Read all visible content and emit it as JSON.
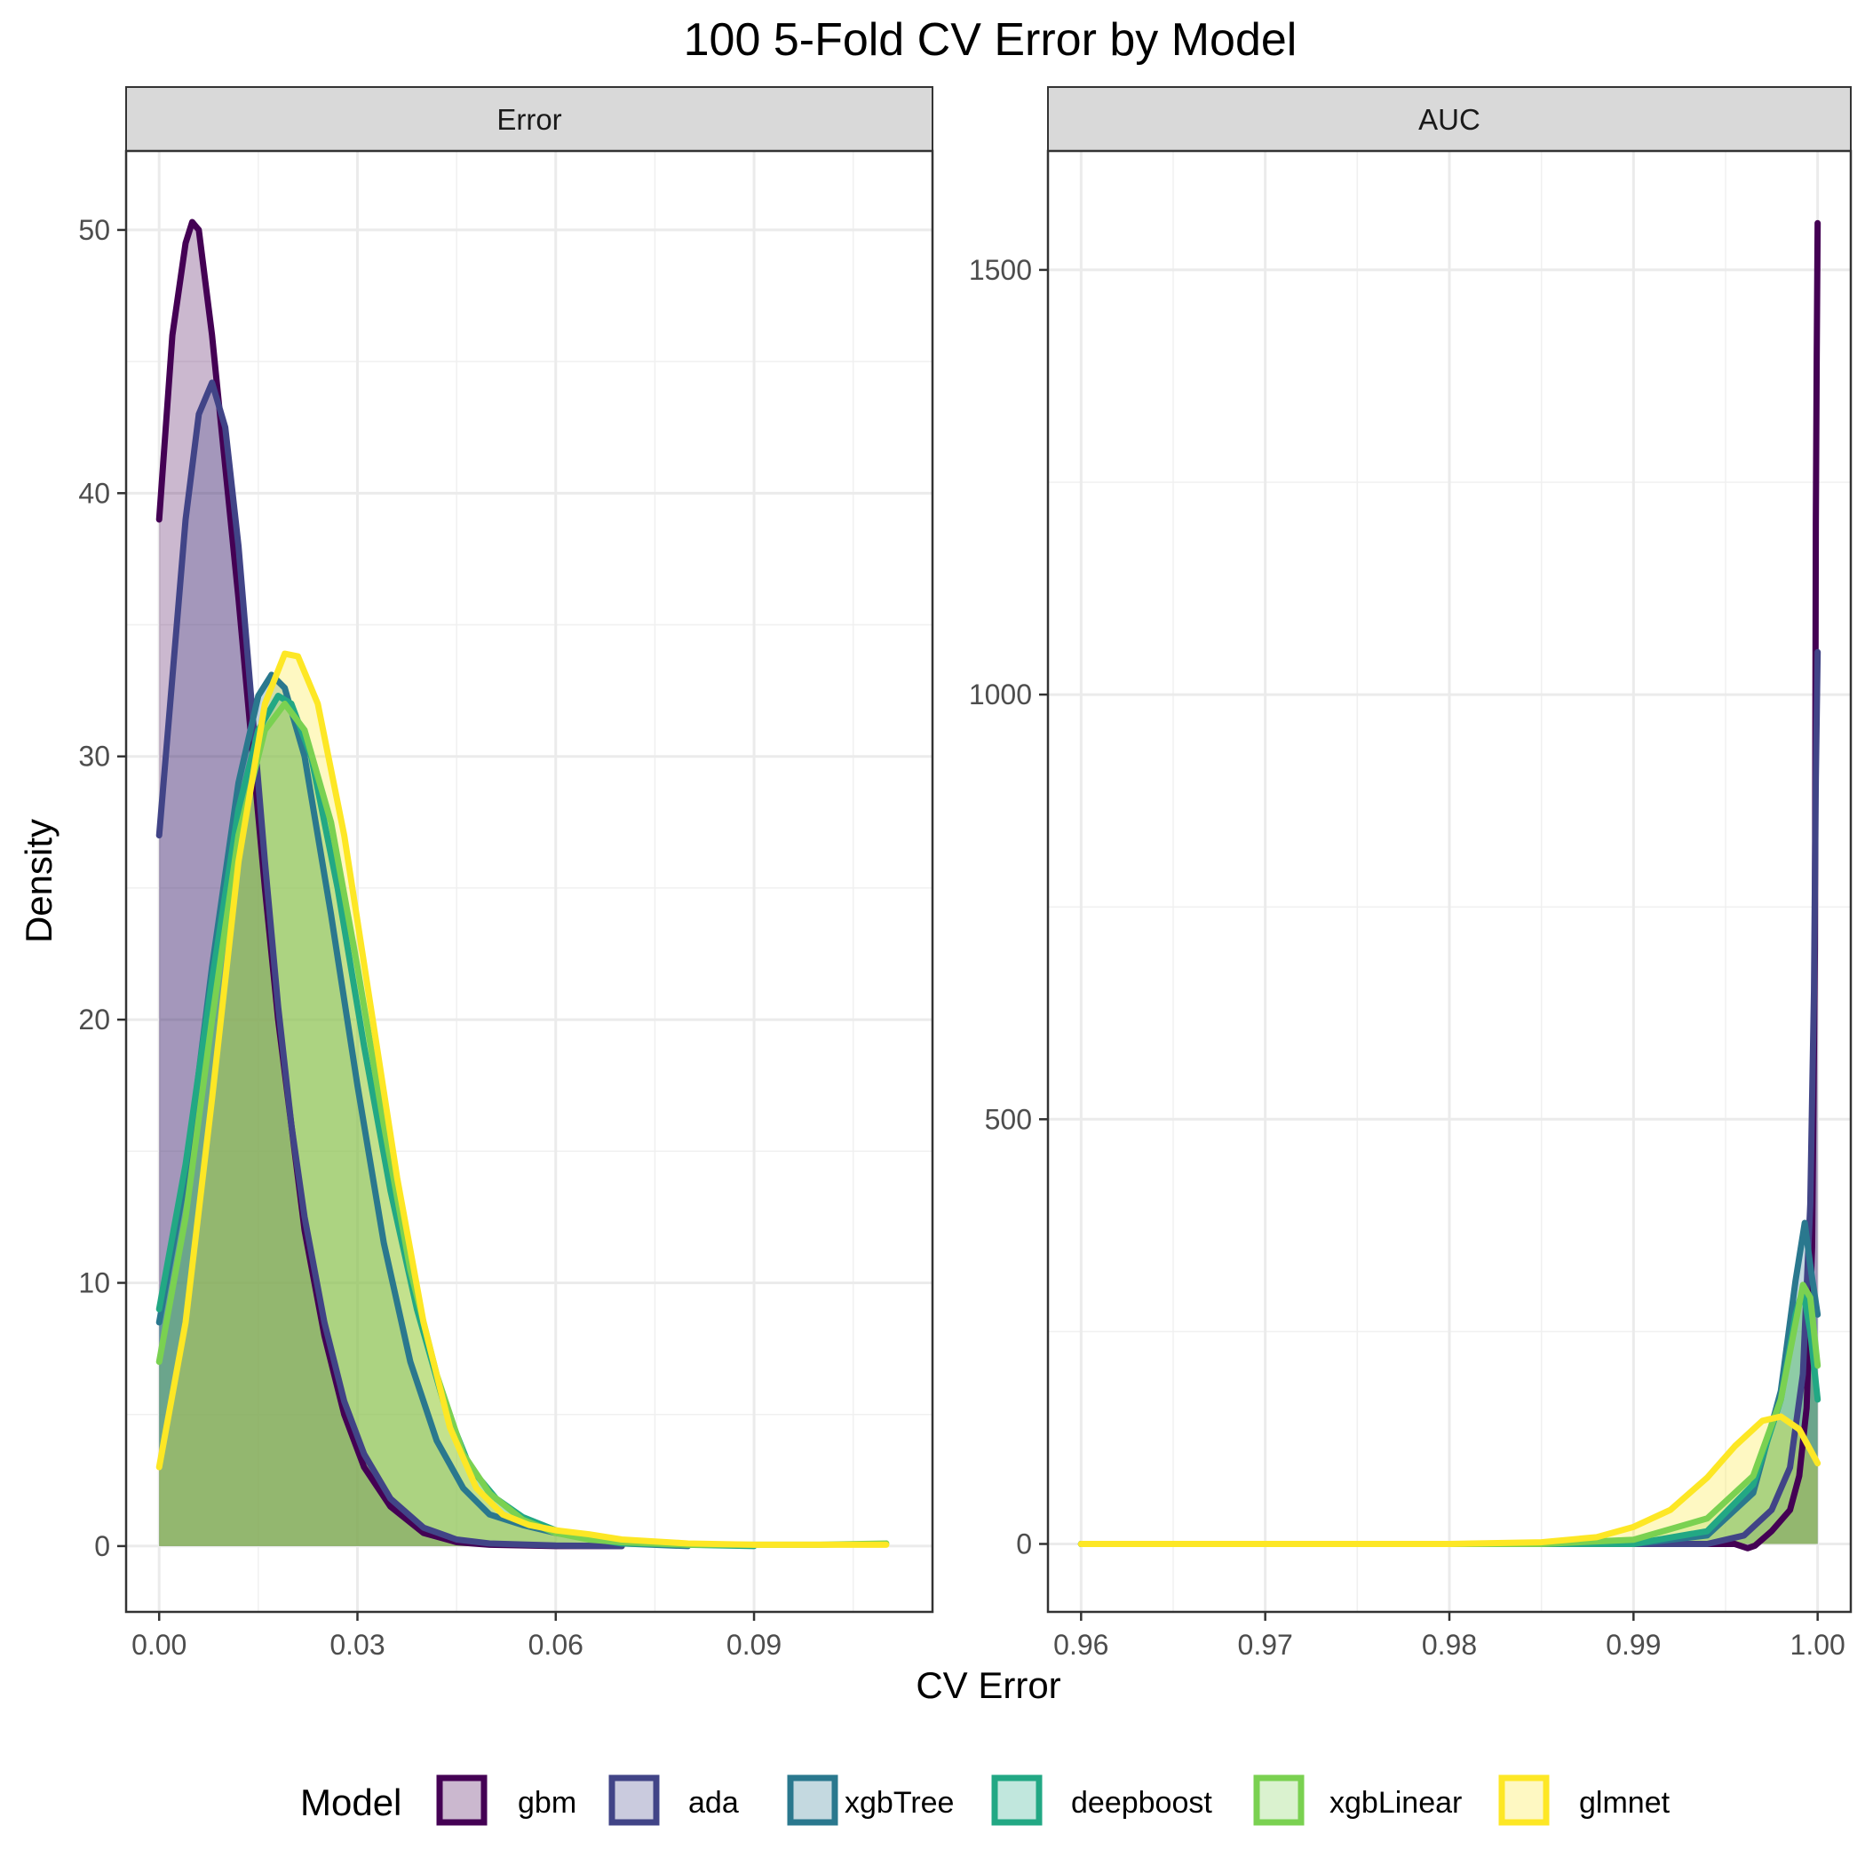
{
  "title": "100 5-Fold CV Error by Model",
  "xlabel": "CV Error",
  "ylabel": "Density",
  "legend": {
    "title": "Model",
    "position": "bottom"
  },
  "chart_data": {
    "type": "area",
    "grid": true,
    "series_names": [
      "gbm",
      "ada",
      "xgbTree",
      "deepboost",
      "xgbLinear",
      "glmnet"
    ],
    "colors": {
      "gbm": "#440154",
      "ada": "#414487",
      "xgbTree": "#2A788E",
      "deepboost": "#22A884",
      "xgbLinear": "#7AD151",
      "glmnet": "#FDE725"
    },
    "panels": [
      {
        "strip": "Error",
        "xlim": [
          -0.005,
          0.117
        ],
        "ylim": [
          -2.5,
          53
        ],
        "x_ticks": [
          0,
          0.03,
          0.06,
          0.09
        ],
        "x_tick_labels": [
          "0.00",
          "0.03",
          "0.06",
          "0.09"
        ],
        "y_ticks": [
          0,
          10,
          20,
          30,
          40,
          50
        ],
        "y_tick_labels": [
          "0",
          "10",
          "20",
          "30",
          "40",
          "50"
        ],
        "series": [
          {
            "name": "gbm",
            "x": [
              0,
              0.002,
              0.004,
              0.005,
              0.006,
              0.008,
              0.01,
              0.012,
              0.014,
              0.016,
              0.018,
              0.02,
              0.022,
              0.025,
              0.028,
              0.031,
              0.035,
              0.04,
              0.045,
              0.05,
              0.06,
              0.07
            ],
            "y": [
              39,
              46,
              49.5,
              50.3,
              50,
              46,
              41,
              36,
              30.5,
              25,
              20,
              16,
              12,
              8,
              5,
              3,
              1.5,
              0.5,
              0.15,
              0.05,
              0,
              0
            ]
          },
          {
            "name": "ada",
            "x": [
              0,
              0.002,
              0.004,
              0.006,
              0.008,
              0.01,
              0.012,
              0.014,
              0.016,
              0.018,
              0.02,
              0.022,
              0.025,
              0.028,
              0.031,
              0.035,
              0.04,
              0.045,
              0.05,
              0.06,
              0.07
            ],
            "y": [
              27,
              33,
              39,
              43,
              44.2,
              42.5,
              38,
              32,
              26,
              20.5,
              16,
              12.5,
              8.5,
              5.5,
              3.5,
              1.8,
              0.7,
              0.25,
              0.1,
              0.02,
              0
            ]
          },
          {
            "name": "xgbTree",
            "x": [
              0,
              0.004,
              0.008,
              0.012,
              0.015,
              0.017,
              0.019,
              0.022,
              0.026,
              0.03,
              0.034,
              0.038,
              0.042,
              0.046,
              0.05,
              0.055,
              0.06,
              0.065,
              0.07,
              0.08
            ],
            "y": [
              8.5,
              14,
              22,
              29,
              32.3,
              33.1,
              32.6,
              30,
              24,
              17.5,
              11.5,
              7,
              4,
              2.2,
              1.2,
              0.8,
              0.5,
              0.3,
              0.1,
              0
            ]
          },
          {
            "name": "deepboost",
            "x": [
              0,
              0.004,
              0.008,
              0.012,
              0.015,
              0.018,
              0.02,
              0.023,
              0.027,
              0.031,
              0.035,
              0.039,
              0.043,
              0.047,
              0.051,
              0.055,
              0.06,
              0.065,
              0.07,
              0.08,
              0.09
            ],
            "y": [
              9,
              14.5,
              21.5,
              28,
              31,
              32.3,
              32,
              30,
              25,
              19,
              13.5,
              9,
              5.5,
              3,
              1.8,
              1.1,
              0.6,
              0.3,
              0.1,
              0.05,
              0
            ]
          },
          {
            "name": "xgbLinear",
            "x": [
              0,
              0.004,
              0.008,
              0.012,
              0.016,
              0.019,
              0.022,
              0.026,
              0.03,
              0.034,
              0.038,
              0.042,
              0.046,
              0.05,
              0.055,
              0.06,
              0.065,
              0.07,
              0.08,
              0.09,
              0.1,
              0.11
            ],
            "y": [
              7,
              12.5,
              20,
              27,
              31,
              32,
              31,
              27.5,
              22,
              16,
              10.5,
              6.5,
              3.5,
              2,
              1,
              0.5,
              0.25,
              0.15,
              0.05,
              0.05,
              0.05,
              0.1
            ]
          },
          {
            "name": "glmnet",
            "x": [
              0,
              0.004,
              0.008,
              0.012,
              0.016,
              0.019,
              0.021,
              0.024,
              0.028,
              0.032,
              0.036,
              0.04,
              0.044,
              0.048,
              0.052,
              0.056,
              0.06,
              0.065,
              0.07,
              0.08,
              0.09,
              0.1,
              0.11
            ],
            "y": [
              3,
              8.5,
              17,
              26,
              32,
              33.9,
              33.8,
              32,
              27,
              20.5,
              14,
              8.5,
              4.5,
              2.2,
              1.2,
              0.8,
              0.6,
              0.45,
              0.25,
              0.1,
              0.05,
              0.05,
              0.05
            ]
          }
        ]
      },
      {
        "strip": "AUC",
        "xlim": [
          0.9582,
          1.0018
        ],
        "ylim": [
          -80,
          1640
        ],
        "x_ticks": [
          0.96,
          0.97,
          0.98,
          0.99,
          1.0
        ],
        "x_tick_labels": [
          "0.96",
          "0.97",
          "0.98",
          "0.99",
          "1.00"
        ],
        "y_ticks": [
          0,
          500,
          1000,
          1500
        ],
        "y_tick_labels": [
          "0",
          "500",
          "1000",
          "1500"
        ],
        "series": [
          {
            "name": "gbm",
            "x": [
              0.96,
              0.9955,
              0.9962,
              0.9966,
              0.9975,
              0.9985,
              0.999,
              0.9994,
              0.9997,
              0.99985,
              0.9999,
              0.99995,
              1.0
            ],
            "y": [
              0,
              0,
              -5,
              -2,
              15,
              40,
              80,
              160,
              350,
              700,
              1200,
              1400,
              1555
            ]
          },
          {
            "name": "ada",
            "x": [
              0.96,
              0.99,
              0.994,
              0.996,
              0.9975,
              0.9985,
              0.9992,
              0.9996,
              0.9998,
              0.9999,
              1.0
            ],
            "y": [
              0,
              0,
              0,
              10,
              40,
              90,
              200,
              400,
              650,
              900,
              1050
            ]
          },
          {
            "name": "xgbTree",
            "x": [
              0.96,
              0.99,
              0.994,
              0.9965,
              0.998,
              0.9988,
              0.9993,
              0.99965,
              1.0
            ],
            "y": [
              0,
              0,
              10,
              60,
              180,
              310,
              378,
              320,
              270
            ]
          },
          {
            "name": "deepboost",
            "x": [
              0.96,
              0.99,
              0.994,
              0.9965,
              0.998,
              0.9988,
              0.9992,
              0.9996,
              1.0
            ],
            "y": [
              0,
              0,
              15,
              70,
              170,
              270,
              300,
              250,
              170
            ]
          },
          {
            "name": "xgbLinear",
            "x": [
              0.96,
              0.985,
              0.99,
              0.994,
              0.9965,
              0.998,
              0.9988,
              0.9992,
              0.9996,
              1.0
            ],
            "y": [
              0,
              0,
              5,
              30,
              80,
              170,
              260,
              305,
              290,
              210
            ]
          },
          {
            "name": "glmnet",
            "x": [
              0.96,
              0.98,
              0.985,
              0.988,
              0.99,
              0.992,
              0.994,
              0.9955,
              0.997,
              0.998,
              0.999,
              1.0
            ],
            "y": [
              0,
              0,
              2,
              8,
              20,
              40,
              78,
              115,
              145,
              150,
              135,
              95
            ]
          }
        ]
      }
    ]
  }
}
